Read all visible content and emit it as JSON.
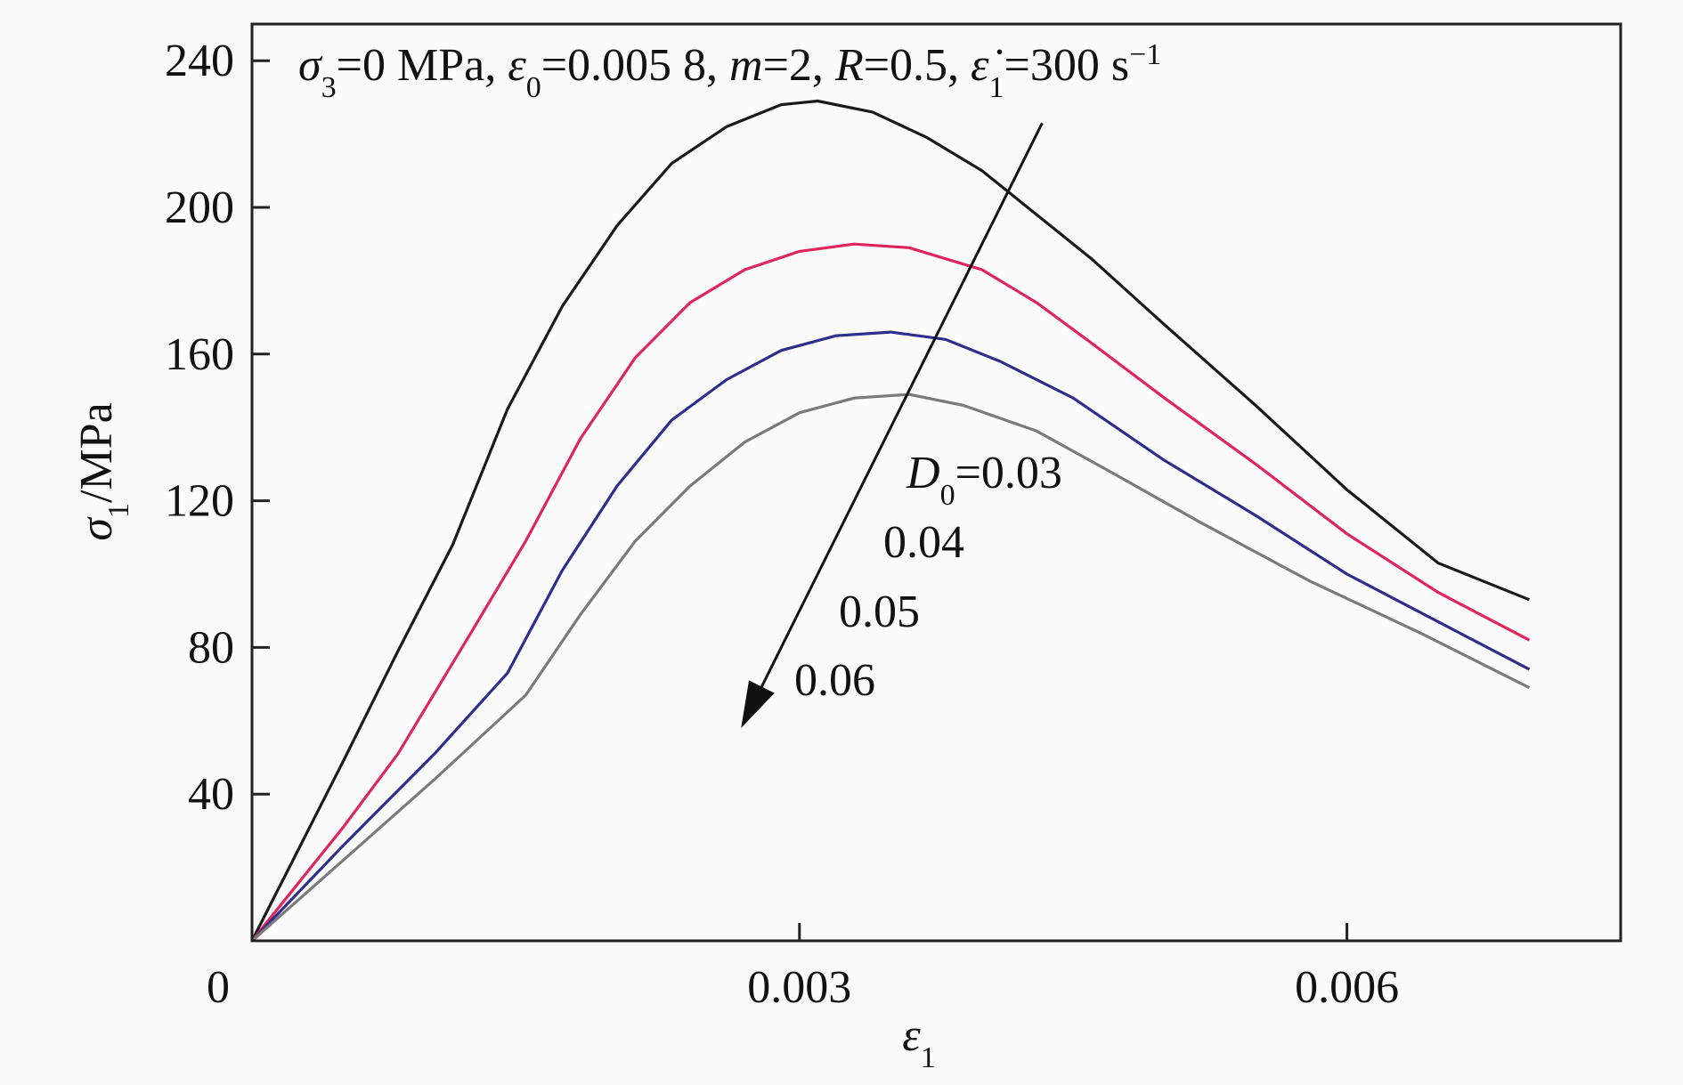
{
  "chart_data": {
    "type": "line",
    "title_parts": {
      "sigma3_sym": "σ",
      "sigma3_sub": "3",
      "sigma3_val": "=0 MPa, ",
      "eps0_sym": "ε",
      "eps0_sub": "0",
      "eps0_val": "=0.005 8, ",
      "m_sym": "m",
      "m_val": "=2, ",
      "R_sym": "R",
      "R_val": "=0.5, ",
      "rate_sym": "ε̇",
      "rate_sub": "1",
      "rate_val": "=300 s",
      "rate_sup": "−1"
    },
    "xlabel": {
      "sym": "ε",
      "sub": "1"
    },
    "ylabel": {
      "sym": "σ",
      "sub": "1",
      "unit": "/MPa"
    },
    "xlim": [
      0,
      0.0075
    ],
    "ylim": [
      0,
      250
    ],
    "xticks": [
      0,
      0.003,
      0.006
    ],
    "xtick_labels": [
      "0",
      "0.003",
      "0.006"
    ],
    "yticks": [
      40,
      80,
      120,
      160,
      200,
      240
    ],
    "ytick_labels": [
      "40",
      "80",
      "120",
      "160",
      "200",
      "240"
    ],
    "series": [
      {
        "name": "0.03",
        "color": "#1a1a1a",
        "x": [
          0,
          0.0005,
          0.0008,
          0.0011,
          0.0014,
          0.0017,
          0.002,
          0.0023,
          0.0026,
          0.0029,
          0.0031,
          0.0034,
          0.0037,
          0.004,
          0.0043,
          0.0046,
          0.005,
          0.0055,
          0.006,
          0.0065,
          0.007
        ],
        "y": [
          0,
          49,
          79,
          108,
          145,
          173,
          195,
          212,
          222,
          228,
          229,
          226,
          219,
          210,
          198,
          186,
          168,
          146,
          123,
          103,
          93
        ]
      },
      {
        "name": "0.04",
        "color": "#e0245e",
        "x": [
          0,
          0.0005,
          0.0008,
          0.0012,
          0.0015,
          0.0018,
          0.0021,
          0.0024,
          0.0027,
          0.003,
          0.0033,
          0.0036,
          0.004,
          0.0043,
          0.0046,
          0.005,
          0.0055,
          0.006,
          0.0065,
          0.007
        ],
        "y": [
          0,
          31,
          51,
          84,
          109,
          137,
          159,
          174,
          183,
          188,
          190,
          189,
          183,
          174,
          163,
          148,
          130,
          111,
          95,
          82
        ]
      },
      {
        "name": "0.05",
        "color": "#2e2e8c",
        "x": [
          0,
          0.0005,
          0.001,
          0.0014,
          0.0017,
          0.002,
          0.0023,
          0.0026,
          0.0029,
          0.0032,
          0.0035,
          0.0038,
          0.0041,
          0.0045,
          0.005,
          0.0055,
          0.006,
          0.0065,
          0.007
        ],
        "y": [
          0,
          26,
          51,
          73,
          101,
          124,
          142,
          153,
          161,
          165,
          166,
          164,
          158,
          148,
          131,
          116,
          100,
          87,
          74
        ]
      },
      {
        "name": "0.06",
        "color": "#7a7a7a",
        "x": [
          0,
          0.0005,
          0.001,
          0.0015,
          0.0018,
          0.0021,
          0.0024,
          0.0027,
          0.003,
          0.0033,
          0.0036,
          0.0039,
          0.0043,
          0.0047,
          0.0052,
          0.0058,
          0.0064,
          0.007
        ],
        "y": [
          0,
          22,
          44,
          67,
          89,
          109,
          124,
          136,
          144,
          148,
          149,
          146,
          139,
          128,
          114,
          98,
          84,
          69
        ]
      }
    ],
    "annotation": {
      "d0_sym": "D",
      "d0_sub": "0",
      "d0_val": "=0.03",
      "labels": [
        "0.04",
        "0.05",
        "0.06"
      ],
      "arrow_from": [
        0.00433,
        223
      ],
      "arrow_to": [
        0.00268,
        58
      ]
    }
  }
}
